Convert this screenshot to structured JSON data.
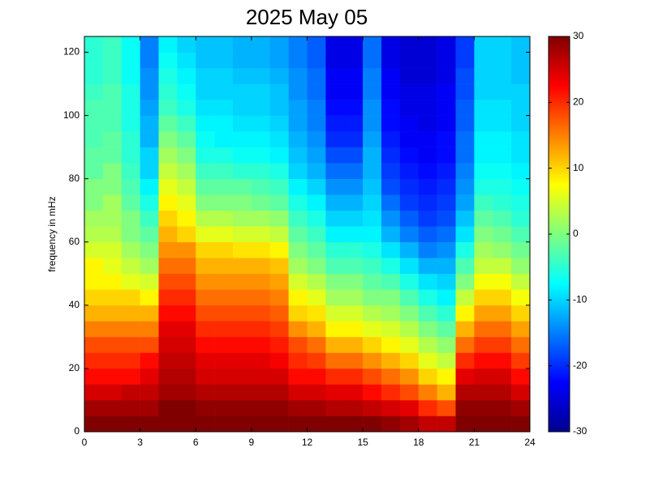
{
  "chart_data": {
    "type": "heatmap",
    "title": "2025 May 05",
    "ylabel": "frequency in mHz",
    "colormap": "jet",
    "x": [
      0.5,
      1.5,
      2.5,
      3.5,
      4.5,
      5.5,
      6.5,
      7.5,
      8.5,
      9.5,
      10.5,
      11.5,
      12.5,
      13.5,
      14.5,
      15.5,
      16.5,
      17.5,
      18.5,
      19.5,
      20.5,
      21.5,
      22.5,
      23.5
    ],
    "y": [
      2.5,
      7.5,
      12.5,
      17.5,
      22.5,
      27.5,
      32.5,
      37.5,
      42.5,
      47.5,
      52.5,
      57.5,
      62.5,
      67.5,
      72.5,
      77.5,
      82.5,
      87.5,
      92.5,
      97.5,
      102.5,
      107.5,
      112.5,
      117.5,
      122.5
    ],
    "values": [
      [
        30,
        28,
        25,
        22,
        20,
        18,
        15,
        12,
        10,
        8,
        8,
        5,
        3,
        2,
        0,
        0,
        -2,
        -2,
        -3,
        -3,
        -3,
        -4,
        -5,
        -5,
        -5
      ],
      [
        30,
        28,
        25,
        22,
        20,
        18,
        15,
        12,
        10,
        8,
        6,
        5,
        3,
        2,
        2,
        0,
        0,
        -2,
        -2,
        -3,
        -3,
        -3,
        -4,
        -4,
        -4
      ],
      [
        30,
        28,
        26,
        22,
        20,
        18,
        15,
        12,
        10,
        6,
        4,
        2,
        0,
        0,
        -2,
        -3,
        -4,
        -5,
        -5,
        -6,
        -6,
        -6,
        -7,
        -7,
        -7
      ],
      [
        30,
        28,
        26,
        24,
        22,
        18,
        15,
        12,
        8,
        5,
        2,
        0,
        -2,
        -4,
        -6,
        -8,
        -10,
        -10,
        -12,
        -12,
        -13,
        -14,
        -14,
        -15,
        -15
      ],
      [
        30,
        30,
        28,
        27,
        26,
        25,
        24,
        22,
        20,
        18,
        16,
        14,
        12,
        10,
        8,
        6,
        4,
        2,
        0,
        -2,
        -4,
        -5,
        -6,
        -7,
        -8
      ],
      [
        30,
        30,
        28,
        27,
        26,
        25,
        24,
        22,
        20,
        18,
        16,
        14,
        10,
        8,
        6,
        4,
        2,
        0,
        -2,
        -4,
        -6,
        -7,
        -8,
        -9,
        -10
      ],
      [
        30,
        29,
        27,
        25,
        24,
        22,
        20,
        18,
        16,
        14,
        12,
        10,
        6,
        3,
        0,
        -2,
        -4,
        -6,
        -7,
        -8,
        -9,
        -10,
        -10,
        -11,
        -11
      ],
      [
        30,
        29,
        27,
        25,
        24,
        22,
        20,
        18,
        16,
        14,
        12,
        10,
        6,
        3,
        0,
        -2,
        -4,
        -6,
        -8,
        -8,
        -9,
        -10,
        -10,
        -11,
        -11
      ],
      [
        30,
        29,
        27,
        25,
        24,
        22,
        20,
        18,
        16,
        14,
        12,
        9,
        5,
        2,
        0,
        -2,
        -5,
        -7,
        -8,
        -9,
        -10,
        -10,
        -11,
        -12,
        -12
      ],
      [
        30,
        29,
        27,
        25,
        24,
        22,
        20,
        18,
        16,
        14,
        12,
        9,
        5,
        2,
        -1,
        -3,
        -5,
        -7,
        -8,
        -9,
        -10,
        -10,
        -11,
        -12,
        -12
      ],
      [
        30,
        29,
        27,
        25,
        23,
        21,
        19,
        17,
        15,
        13,
        11,
        8,
        4,
        1,
        -2,
        -4,
        -6,
        -8,
        -9,
        -10,
        -11,
        -11,
        -12,
        -13,
        -13
      ],
      [
        30,
        28,
        25,
        22,
        20,
        18,
        14,
        10,
        8,
        5,
        2,
        0,
        -2,
        -4,
        -6,
        -8,
        -10,
        -11,
        -12,
        -13,
        -13,
        -14,
        -14,
        -15,
        -15
      ],
      [
        30,
        28,
        25,
        22,
        19,
        16,
        12,
        9,
        6,
        3,
        0,
        -2,
        -4,
        -6,
        -8,
        -10,
        -12,
        -13,
        -14,
        -15,
        -15,
        -16,
        -16,
        -17,
        -17
      ],
      [
        30,
        27,
        24,
        20,
        16,
        12,
        8,
        5,
        2,
        0,
        -3,
        -5,
        -8,
        -10,
        -12,
        -14,
        -16,
        -18,
        -20,
        -21,
        -22,
        -23,
        -23,
        -24,
        -24
      ],
      [
        30,
        27,
        24,
        20,
        16,
        12,
        8,
        5,
        2,
        0,
        -3,
        -5,
        -8,
        -10,
        -12,
        -14,
        -16,
        -18,
        -20,
        -21,
        -22,
        -23,
        -23,
        -24,
        -24
      ],
      [
        30,
        26,
        22,
        18,
        14,
        10,
        6,
        3,
        0,
        -2,
        -4,
        -6,
        -8,
        -9,
        -10,
        -11,
        -12,
        -12,
        -13,
        -14,
        -14,
        -15,
        -15,
        -16,
        -16
      ],
      [
        29,
        25,
        20,
        16,
        12,
        8,
        5,
        2,
        0,
        -3,
        -6,
        -9,
        -12,
        -14,
        -16,
        -18,
        -19,
        -20,
        -21,
        -22,
        -22,
        -23,
        -23,
        -24,
        -24
      ],
      [
        28,
        24,
        18,
        14,
        10,
        6,
        3,
        0,
        -3,
        -6,
        -9,
        -12,
        -15,
        -17,
        -19,
        -20,
        -21,
        -22,
        -23,
        -23,
        -24,
        -24,
        -25,
        -25,
        -25
      ],
      [
        26,
        20,
        15,
        10,
        6,
        3,
        0,
        -3,
        -6,
        -9,
        -12,
        -15,
        -17,
        -19,
        -20,
        -21,
        -22,
        -23,
        -23,
        -24,
        -24,
        -24,
        -25,
        -25,
        -25
      ],
      [
        26,
        18,
        12,
        8,
        4,
        1,
        -2,
        -5,
        -8,
        -10,
        -12,
        -14,
        -16,
        -18,
        -19,
        -20,
        -21,
        -22,
        -22,
        -23,
        -23,
        -23,
        -24,
        -24,
        -24
      ],
      [
        30,
        29,
        27,
        24,
        20,
        16,
        12,
        8,
        4,
        0,
        -3,
        -6,
        -9,
        -11,
        -13,
        -14,
        -15,
        -16,
        -16,
        -17,
        -17,
        -18,
        -18,
        -19,
        -19
      ],
      [
        30,
        29,
        27,
        25,
        22,
        19,
        16,
        13,
        10,
        7,
        4,
        2,
        0,
        -2,
        -4,
        -6,
        -7,
        -8,
        -8,
        -9,
        -9,
        -10,
        -10,
        -10,
        -10
      ],
      [
        30,
        29,
        27,
        25,
        22,
        19,
        16,
        13,
        10,
        7,
        4,
        1,
        -1,
        -3,
        -5,
        -6,
        -7,
        -8,
        -8,
        -9,
        -9,
        -10,
        -10,
        -10,
        -10
      ],
      [
        30,
        28,
        25,
        22,
        19,
        16,
        13,
        10,
        7,
        4,
        1,
        -1,
        -3,
        -5,
        -6,
        -7,
        -8,
        -9,
        -9,
        -10,
        -10,
        -10,
        -11,
        -11,
        -11
      ]
    ],
    "xlim": [
      0,
      24
    ],
    "xticks": [
      0,
      3,
      6,
      9,
      12,
      15,
      18,
      21,
      24
    ],
    "ylim": [
      0,
      125
    ],
    "yticks": [
      0,
      20,
      40,
      60,
      80,
      100,
      120
    ],
    "clim": [
      -30,
      30
    ],
    "cticks": [
      -30,
      -20,
      -10,
      0,
      10,
      20,
      30
    ]
  }
}
